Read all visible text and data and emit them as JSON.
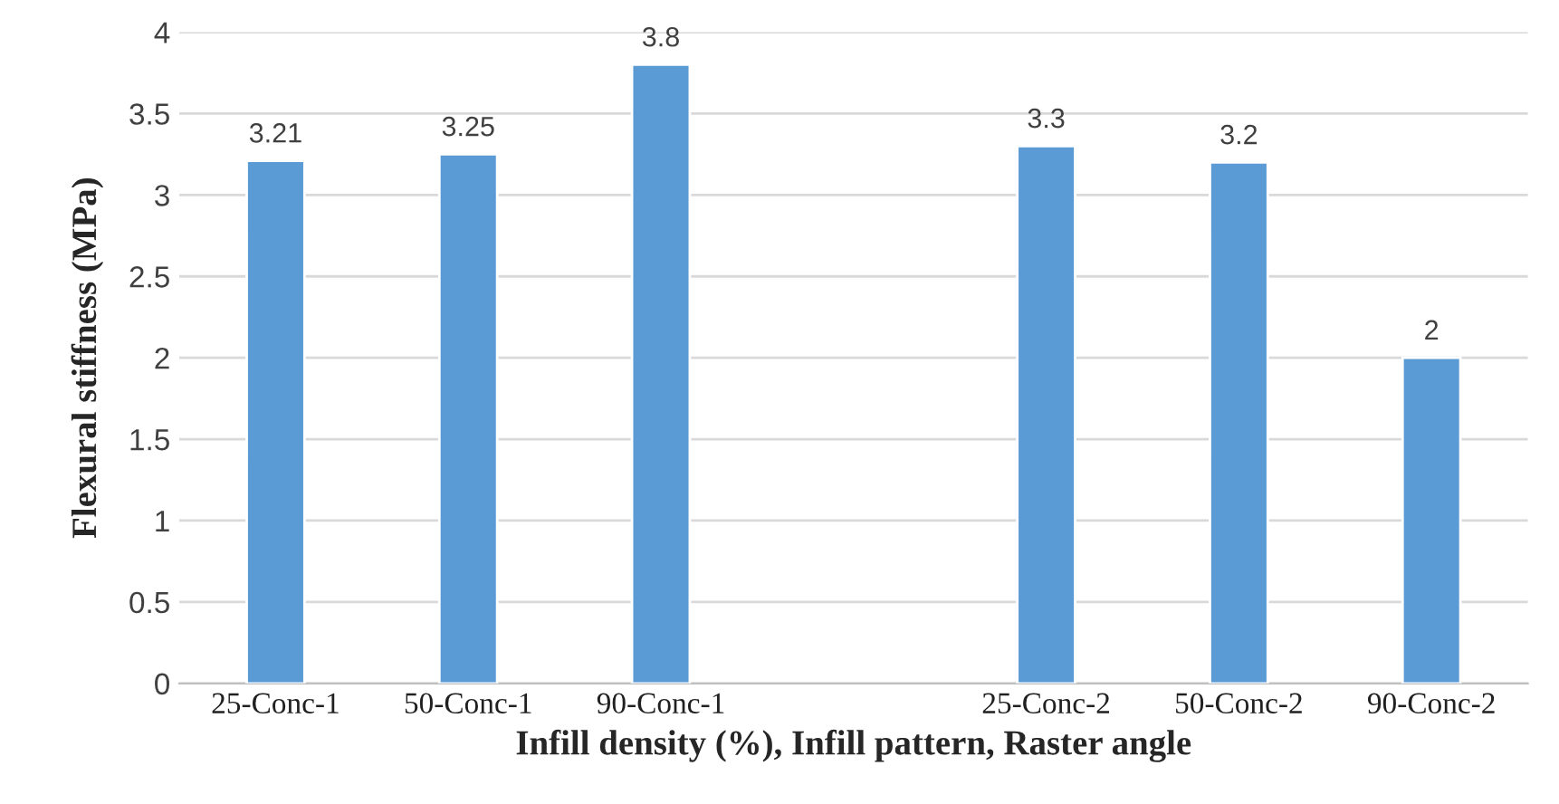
{
  "chart_data": {
    "type": "bar",
    "xlabel": "Infill density (%), Infill pattern, Raster angle",
    "ylabel": "Flexural stiffness (MPa)",
    "categories": [
      "25-Conc-1",
      "50-Conc-1",
      "90-Conc-1",
      null,
      "25-Conc-2",
      "50-Conc-2",
      "90-Conc-2"
    ],
    "values": [
      3.21,
      3.25,
      3.8,
      null,
      3.3,
      3.2,
      2
    ],
    "color": "#5b9bd5",
    "ylim": [
      0,
      4
    ],
    "yticks": [
      0,
      0.5,
      1,
      1.5,
      2,
      2.5,
      3,
      3.5,
      4
    ],
    "grid": "y",
    "data_labels": true
  }
}
